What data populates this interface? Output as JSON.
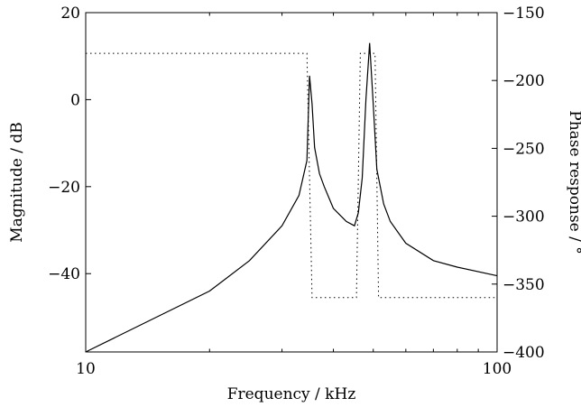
{
  "chart_data": {
    "type": "line",
    "title": "",
    "xlabel": "Frequency / kHz",
    "ylabel_left": "Magnitude / dB",
    "ylabel_right": "Phase response / °",
    "x_scale": "log",
    "xlim": [
      10,
      100
    ],
    "ylim_left": [
      -58,
      20
    ],
    "ylim_right": [
      -400,
      -150
    ],
    "grid": false,
    "x_ticks": [
      {
        "value": 10,
        "label": "10"
      },
      {
        "value": 100,
        "label": "100"
      }
    ],
    "x_minor_ticks": [
      20,
      30,
      40,
      50,
      60,
      70,
      80,
      90
    ],
    "y_ticks_left": [
      {
        "value": 20,
        "label": "20"
      },
      {
        "value": 0,
        "label": "0"
      },
      {
        "value": -20,
        "label": "−20"
      },
      {
        "value": -40,
        "label": "−40"
      }
    ],
    "y_ticks_right": [
      {
        "value": -150,
        "label": "−150"
      },
      {
        "value": -200,
        "label": "−200"
      },
      {
        "value": -250,
        "label": "−250"
      },
      {
        "value": -300,
        "label": "−300"
      },
      {
        "value": -350,
        "label": "−350"
      },
      {
        "value": -400,
        "label": "−400"
      }
    ],
    "series": [
      {
        "axis": "left",
        "style": "solid",
        "color": "#000000",
        "x": [
          10,
          20,
          25,
          30,
          33,
          34.5,
          35,
          35.5,
          36,
          37,
          38,
          40,
          43,
          45,
          46,
          47,
          48,
          49,
          50,
          51,
          53,
          55,
          60,
          70,
          80,
          100
        ],
        "y": [
          -58,
          -44,
          -37,
          -29,
          -22,
          -14,
          5.5,
          -1,
          -11,
          -17,
          -20,
          -25,
          -28,
          -29,
          -26,
          -18,
          0,
          13,
          -1,
          -16,
          -24,
          -28,
          -33,
          -37,
          -38.5,
          -40.5
        ]
      },
      {
        "axis": "right",
        "style": "dotted",
        "color": "#000000",
        "x": [
          10,
          34.5,
          35.5,
          45.5,
          46.5,
          50.5,
          51.5,
          100
        ],
        "y": [
          -180,
          -180,
          -360,
          -360,
          -180,
          -180,
          -360,
          -360
        ]
      }
    ]
  }
}
